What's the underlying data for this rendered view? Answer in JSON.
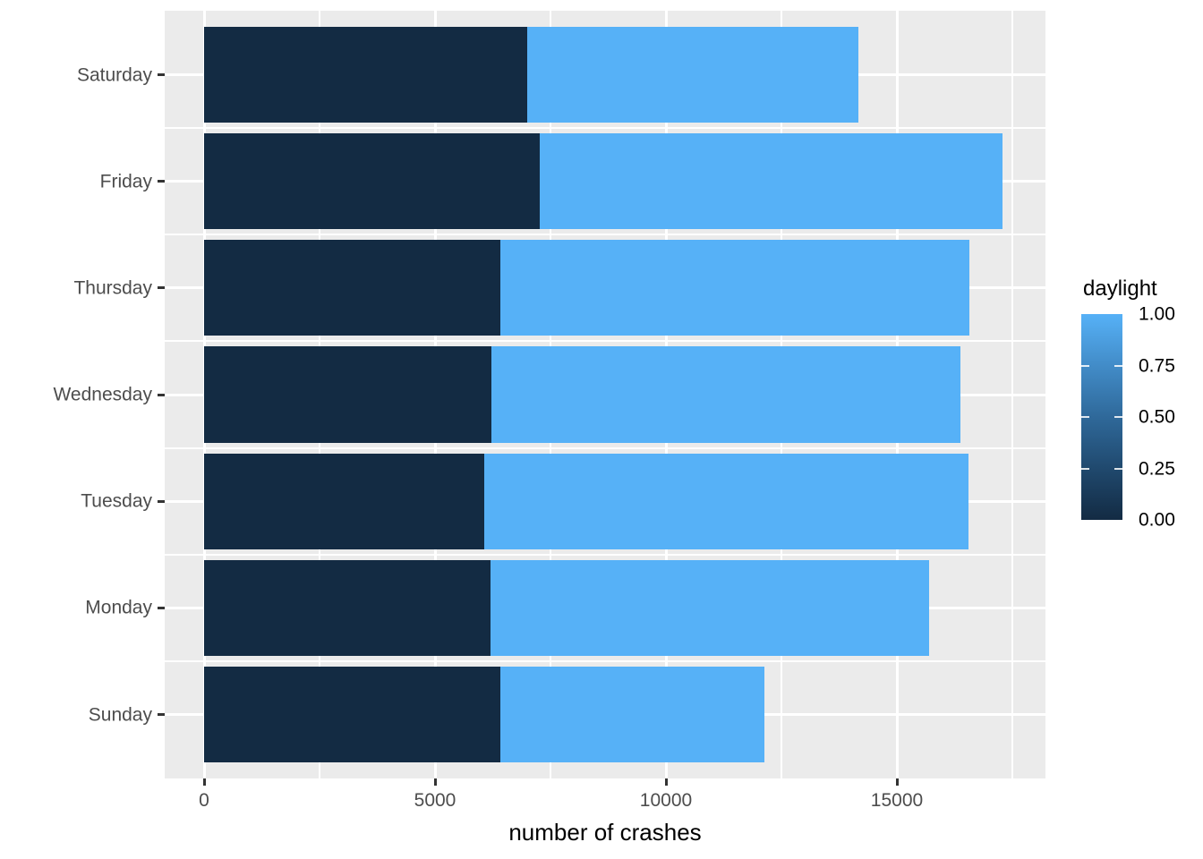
{
  "chart_data": {
    "type": "bar",
    "orientation": "horizontal",
    "stacked": true,
    "title": "",
    "xlabel": "number of crashes",
    "ylabel": "",
    "categories": [
      "Saturday",
      "Friday",
      "Thursday",
      "Wednesday",
      "Tuesday",
      "Monday",
      "Sunday"
    ],
    "series": [
      {
        "name": "daylight 0.00 (dark)",
        "color": "#132B43",
        "values": [
          7000,
          7270,
          6420,
          6220,
          6070,
          6200,
          6410
        ]
      },
      {
        "name": "daylight 1.00 (light)",
        "color": "#56B1F7",
        "values": [
          7170,
          10020,
          10150,
          10160,
          10480,
          9500,
          5720
        ]
      }
    ],
    "totals": [
      14170,
      17290,
      16570,
      16380,
      16550,
      15700,
      12130
    ],
    "x_ticks": [
      0,
      5000,
      10000,
      15000
    ],
    "x_tick_labels": [
      "0",
      "5000",
      "10000",
      "15000"
    ],
    "x_minor_ticks": [
      2500,
      7500,
      12500,
      17500
    ],
    "xlim": [
      -853,
      18217
    ],
    "grid": true,
    "panel_background": "#EBEBEB",
    "gridline_color": "#ffffff",
    "axis_text_color": "#4D4D4D",
    "tick_mark_color": "#333333",
    "legend": {
      "position": "right",
      "title": "daylight",
      "type": "colorbar",
      "labels": [
        "1.00",
        "0.75",
        "0.50",
        "0.25",
        "0.00"
      ],
      "label_values": [
        1.0,
        0.75,
        0.5,
        0.25,
        0.0
      ],
      "gradient_top_color": "#56B1F7",
      "gradient_bottom_color": "#132B43",
      "gradient_stops": [
        "#56B1F7",
        "#428CC8",
        "#2F699A",
        "#20496E",
        "#132B43"
      ]
    }
  }
}
